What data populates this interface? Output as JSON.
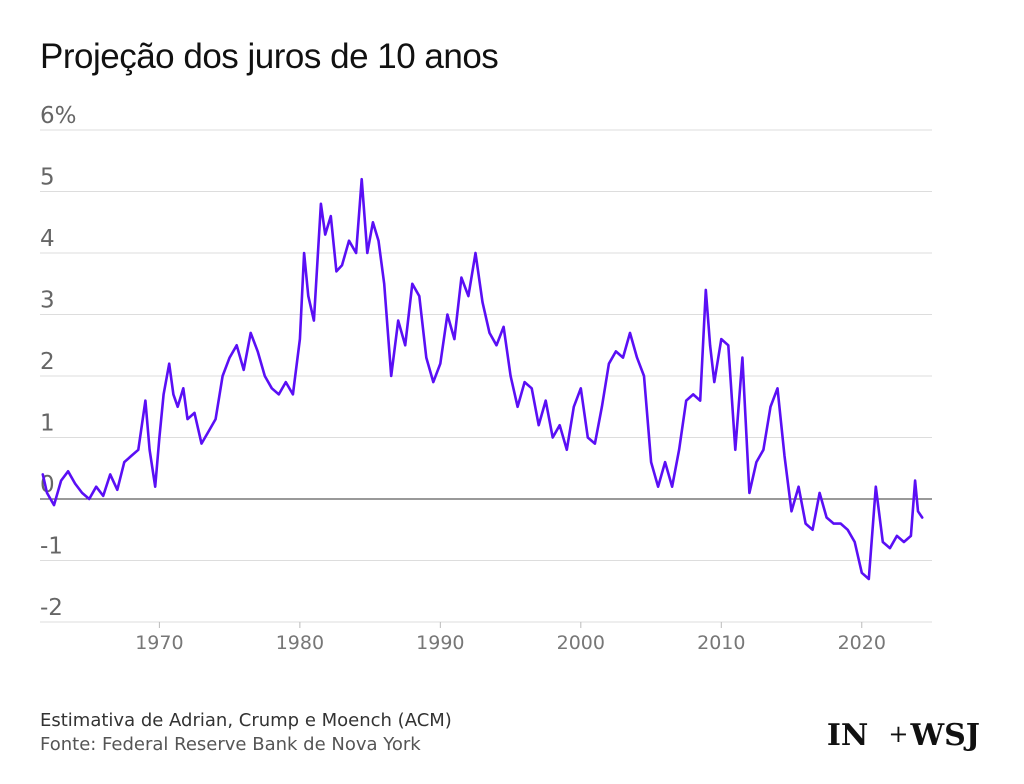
{
  "chart_data": {
    "type": "line",
    "title": "Projeção dos juros de 10 anos",
    "xlabel": "",
    "ylabel": "",
    "y_unit_label": "6%",
    "xlim": [
      1961.5,
      2025
    ],
    "ylim": [
      -2,
      6
    ],
    "yticks": [
      -2,
      -1,
      0,
      1,
      2,
      3,
      4,
      5,
      6
    ],
    "ytick_labels": [
      "-2",
      "-1",
      "0",
      "1",
      "2",
      "3",
      "4",
      "5",
      "6%"
    ],
    "xticks": [
      1970,
      1980,
      1990,
      2000,
      2010,
      2020
    ],
    "xtick_labels": [
      "1970",
      "1980",
      "1990",
      "2000",
      "2010",
      "2020"
    ],
    "grid": true,
    "legend": "none",
    "line_color": "#5a0ff5",
    "series": [
      {
        "x": [
          1961.7,
          1962.0,
          1962.5,
          1963.0,
          1963.5,
          1964.0,
          1964.5,
          1965.0,
          1965.5,
          1966.0,
          1966.5,
          1967.0,
          1967.5,
          1968.0,
          1968.5,
          1969.0,
          1969.3,
          1969.7,
          1970.0,
          1970.3,
          1970.7,
          1971.0,
          1971.3,
          1971.7,
          1972.0,
          1972.5,
          1973.0,
          1973.5,
          1974.0,
          1974.5,
          1975.0,
          1975.5,
          1976.0,
          1976.5,
          1977.0,
          1977.5,
          1978.0,
          1978.5,
          1979.0,
          1979.5,
          1980.0,
          1980.3,
          1980.6,
          1981.0,
          1981.5,
          1981.8,
          1982.2,
          1982.6,
          1983.0,
          1983.5,
          1984.0,
          1984.4,
          1984.8,
          1985.2,
          1985.6,
          1986.0,
          1986.5,
          1987.0,
          1987.5,
          1988.0,
          1988.5,
          1989.0,
          1989.5,
          1990.0,
          1990.5,
          1991.0,
          1991.5,
          1992.0,
          1992.5,
          1993.0,
          1993.5,
          1994.0,
          1994.5,
          1995.0,
          1995.5,
          1996.0,
          1996.5,
          1997.0,
          1997.5,
          1998.0,
          1998.5,
          1999.0,
          1999.5,
          2000.0,
          2000.5,
          2001.0,
          2001.5,
          2002.0,
          2002.5,
          2003.0,
          2003.5,
          2004.0,
          2004.5,
          2005.0,
          2005.5,
          2006.0,
          2006.5,
          2007.0,
          2007.5,
          2008.0,
          2008.5,
          2008.9,
          2009.2,
          2009.5,
          2010.0,
          2010.5,
          2011.0,
          2011.5,
          2012.0,
          2012.5,
          2013.0,
          2013.5,
          2014.0,
          2014.5,
          2015.0,
          2015.5,
          2016.0,
          2016.5,
          2017.0,
          2017.5,
          2018.0,
          2018.5,
          2019.0,
          2019.5,
          2020.0,
          2020.5,
          2021.0,
          2021.5,
          2022.0,
          2022.5,
          2023.0,
          2023.5,
          2023.8,
          2024.0,
          2024.3
        ],
        "values": [
          0.4,
          0.1,
          -0.1,
          0.3,
          0.45,
          0.25,
          0.1,
          0.0,
          0.2,
          0.05,
          0.4,
          0.15,
          0.6,
          0.7,
          0.8,
          1.6,
          0.8,
          0.2,
          1.0,
          1.7,
          2.2,
          1.7,
          1.5,
          1.8,
          1.3,
          1.4,
          0.9,
          1.1,
          1.3,
          2.0,
          2.3,
          2.5,
          2.1,
          2.7,
          2.4,
          2.0,
          1.8,
          1.7,
          1.9,
          1.7,
          2.6,
          4.0,
          3.3,
          2.9,
          4.8,
          4.3,
          4.6,
          3.7,
          3.8,
          4.2,
          4.0,
          5.2,
          4.0,
          4.5,
          4.2,
          3.5,
          2.0,
          2.9,
          2.5,
          3.5,
          3.3,
          2.3,
          1.9,
          2.2,
          3.0,
          2.6,
          3.6,
          3.3,
          4.0,
          3.2,
          2.7,
          2.5,
          2.8,
          2.0,
          1.5,
          1.9,
          1.8,
          1.2,
          1.6,
          1.0,
          1.2,
          0.8,
          1.5,
          1.8,
          1.0,
          0.9,
          1.5,
          2.2,
          2.4,
          2.3,
          2.7,
          2.3,
          2.0,
          0.6,
          0.2,
          0.6,
          0.2,
          0.8,
          1.6,
          1.7,
          1.6,
          3.4,
          2.5,
          1.9,
          2.6,
          2.5,
          0.8,
          2.3,
          0.1,
          0.6,
          0.8,
          1.5,
          1.8,
          0.7,
          -0.2,
          0.2,
          -0.4,
          -0.5,
          0.1,
          -0.3,
          -0.4,
          -0.4,
          -0.5,
          -0.7,
          -1.2,
          -1.3,
          0.2,
          -0.7,
          -0.8,
          -0.6,
          -0.7,
          -0.6,
          0.3,
          -0.2,
          -0.3
        ]
      }
    ]
  },
  "footer": {
    "note": "Estimativa de Adrian, Crump e Moench (ACM)",
    "source": "Fonte: Federal Reserve Bank de Nova York",
    "logo_in": "IN",
    "logo_plus": "+",
    "logo_wsj": "WSJ"
  }
}
